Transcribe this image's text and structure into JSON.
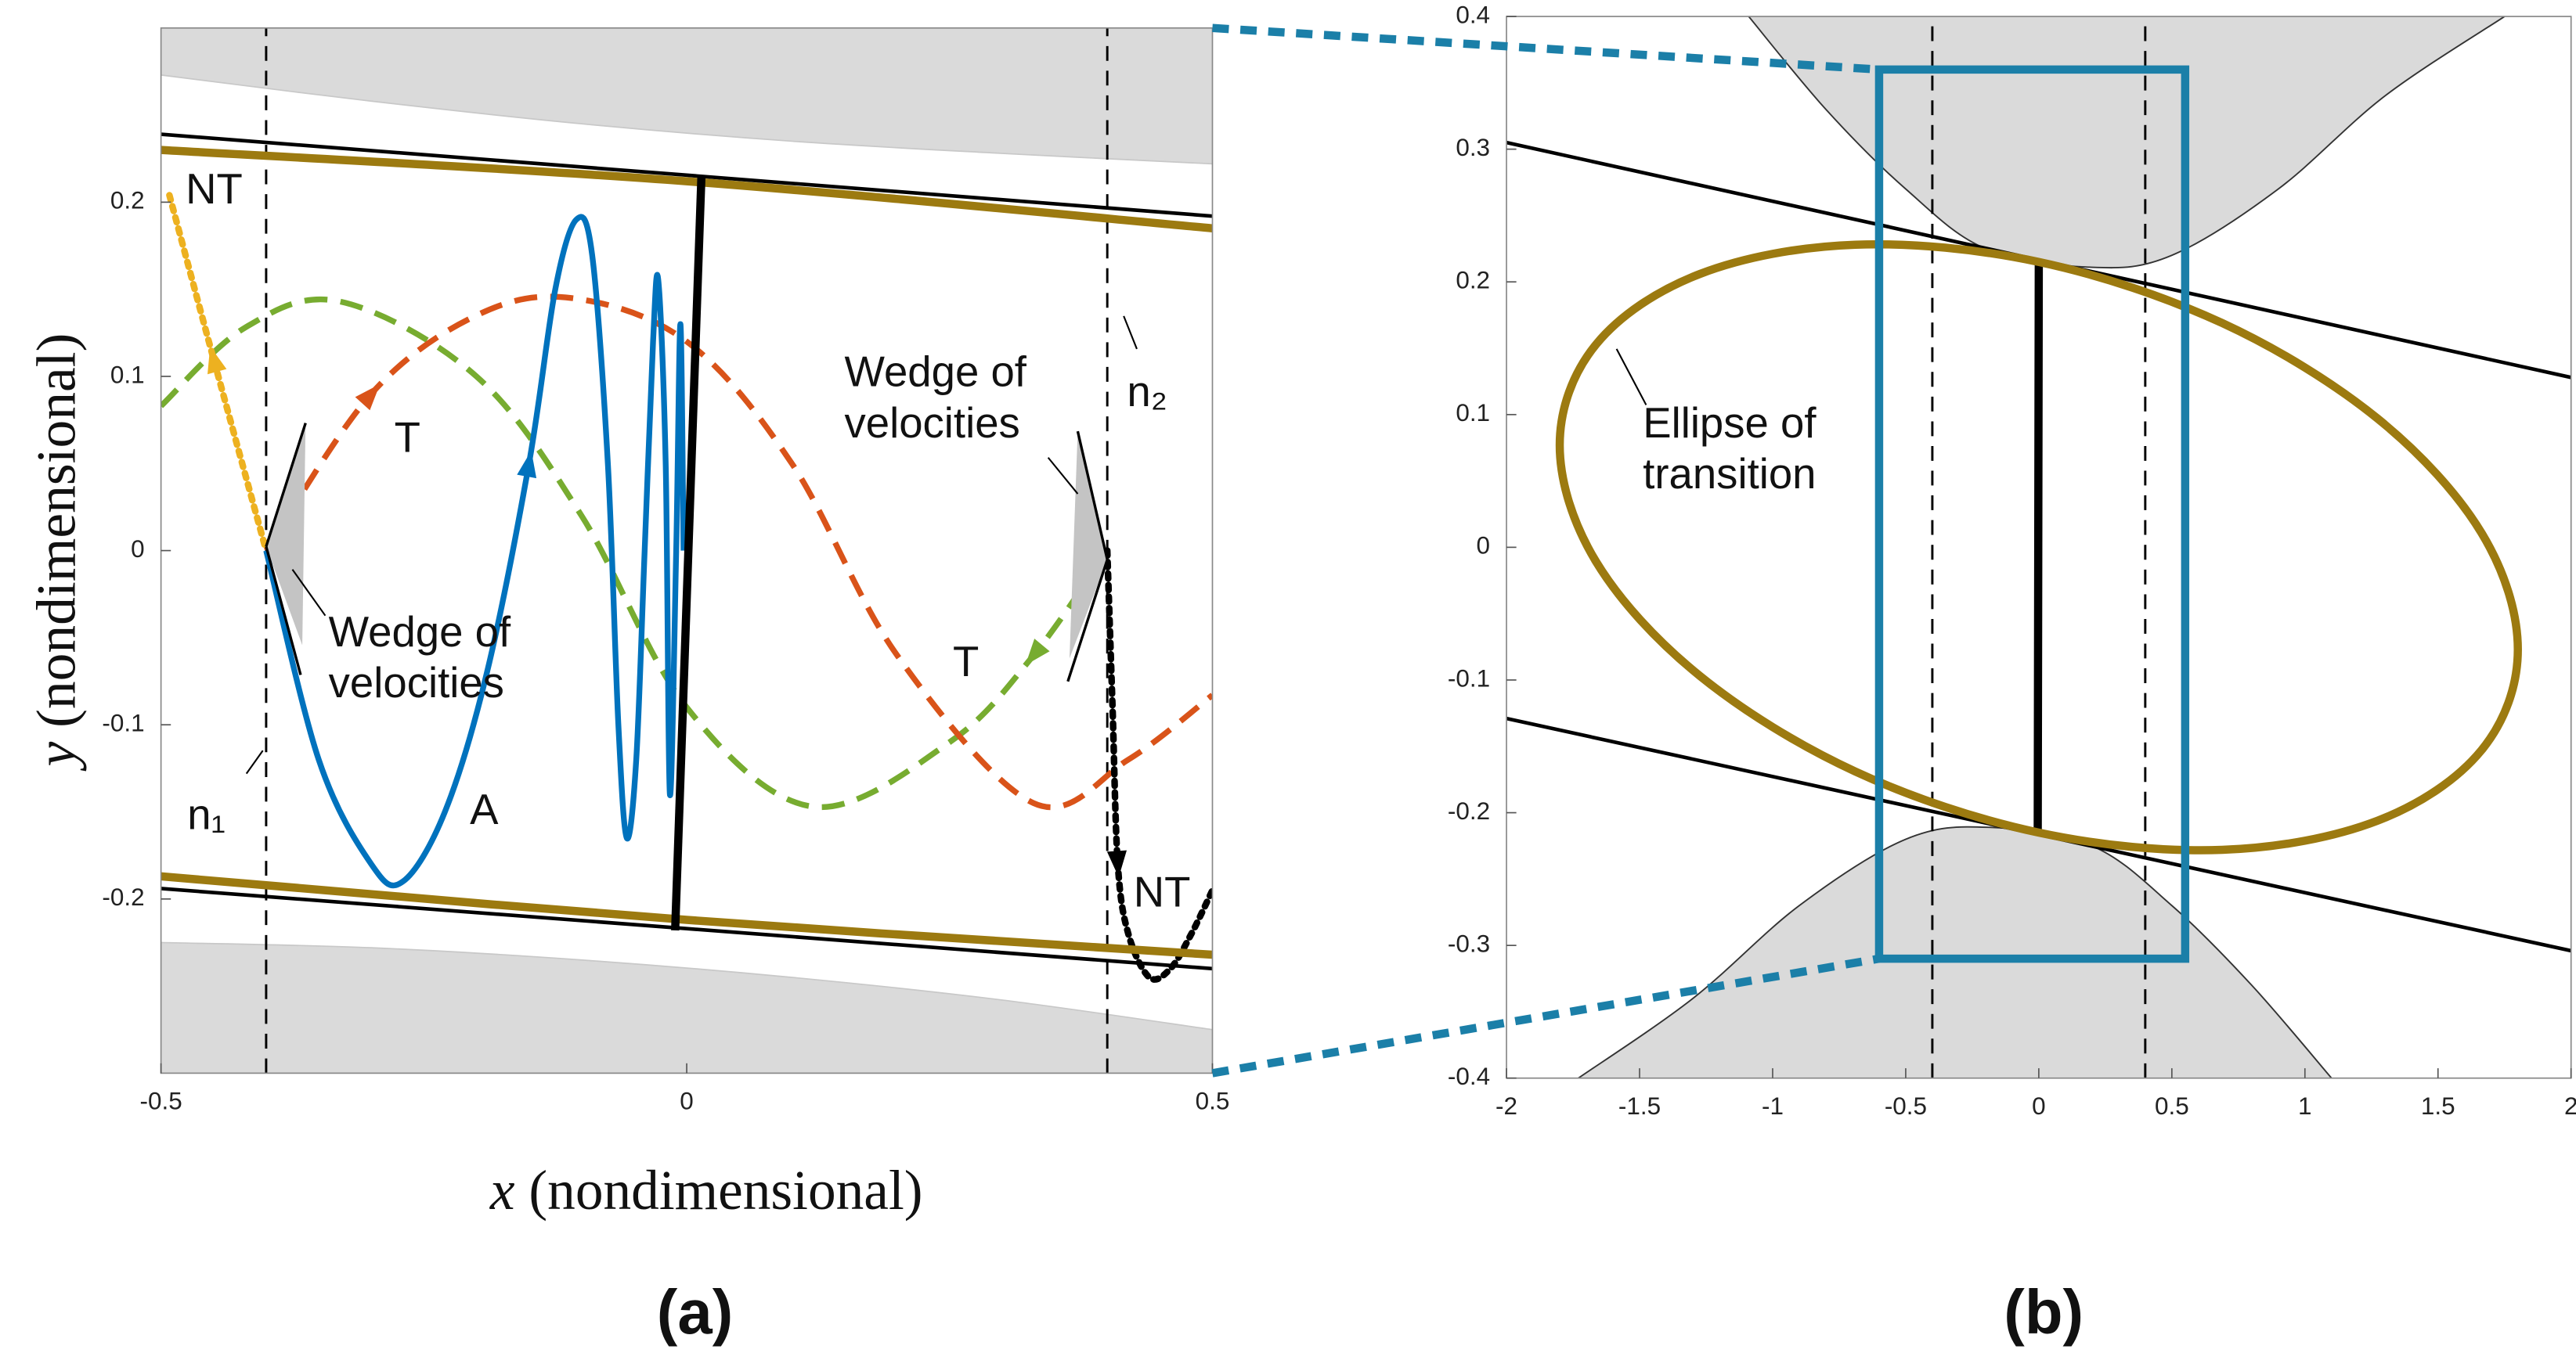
{
  "chart_data": [
    {
      "type": "line",
      "panel_label": "(a)",
      "x_label": {
        "var": "x",
        "unit": "(nondimensional)"
      },
      "y_label": {
        "var": "y",
        "unit": "(nondimensional)"
      },
      "xlim": [
        -0.5,
        0.5
      ],
      "ylim": [
        -0.3,
        0.3
      ],
      "xticks": [
        -0.5,
        0,
        0.5
      ],
      "yticks": [
        -0.2,
        -0.1,
        0,
        0.1,
        0.2
      ],
      "annotations": [
        [
          "NT"
        ],
        [
          "T"
        ],
        [
          "T"
        ],
        [
          "A"
        ],
        [
          "Wedge of",
          "velocities"
        ],
        [
          "Wedge of",
          "velocities"
        ],
        [
          "NT"
        ],
        [
          "n₁"
        ],
        [
          "n₂"
        ]
      ],
      "series": [
        {
          "color": "#c8c8c8",
          "fill": "#dadada",
          "fill_to": "top",
          "width": 0.8,
          "style": "solid",
          "x": [
            -0.5,
            -0.3,
            -0.1,
            0.1,
            0.3,
            0.5
          ],
          "values": [
            0.273,
            0.258,
            0.245,
            0.235,
            0.228,
            0.222
          ]
        },
        {
          "color": "#c8c8c8",
          "fill": "#dadada",
          "fill_to": "bottom",
          "width": 0.8,
          "style": "solid",
          "x": [
            -0.5,
            -0.3,
            -0.1,
            0.1,
            0.3,
            0.5
          ],
          "values": [
            -0.225,
            -0.228,
            -0.235,
            -0.245,
            -0.258,
            -0.275
          ]
        },
        {
          "color": "#000000",
          "width": 1.4,
          "style": "longdash",
          "x": [
            -0.4,
            -0.4
          ],
          "values": [
            -0.3,
            0.3
          ]
        },
        {
          "color": "#000000",
          "width": 1.4,
          "style": "longdash",
          "x": [
            0.4,
            0.4
          ],
          "values": [
            -0.3,
            0.3
          ]
        },
        {
          "color": "#000000",
          "width": 2.2,
          "style": "solid",
          "x": [
            -0.5,
            0.5
          ],
          "values": [
            0.239,
            0.192
          ]
        },
        {
          "color": "#000000",
          "width": 2.2,
          "style": "solid",
          "x": [
            -0.5,
            0.5
          ],
          "values": [
            -0.194,
            -0.24
          ]
        },
        {
          "color": "#77ac30",
          "width": 3.5,
          "style": "dash",
          "x": [
            -0.5,
            -0.42,
            -0.33,
            -0.2,
            -0.1,
            0,
            0.12,
            0.25,
            0.33,
            0.4
          ],
          "values": [
            0.083,
            0.128,
            0.143,
            0.1,
            0.02,
            -0.09,
            -0.147,
            -0.11,
            -0.06,
            0
          ]
        },
        {
          "color": "#d95319",
          "width": 3.5,
          "style": "dash",
          "x": [
            -0.4,
            -0.3,
            -0.2,
            -0.11,
            0,
            0.1,
            0.2,
            0.33,
            0.42,
            0.5
          ],
          "values": [
            0,
            0.09,
            0.135,
            0.145,
            0.12,
            0.05,
            -0.06,
            -0.145,
            -0.12,
            -0.083
          ]
        },
        {
          "color": "#edb120",
          "width": 4,
          "style": "dot",
          "x": [
            -0.492,
            -0.45,
            -0.4
          ],
          "values": [
            0.204,
            0.11,
            0
          ]
        },
        {
          "color": "#000000",
          "width": 4,
          "style": "dot",
          "x": [
            0.4,
            0.405,
            0.41,
            0.42,
            0.44,
            0.46,
            0.48,
            0.5
          ],
          "values": [
            0,
            -0.09,
            -0.18,
            -0.22,
            -0.245,
            -0.24,
            -0.22,
            -0.195
          ]
        },
        {
          "color": "#0072bd",
          "width": 3.5,
          "style": "solid",
          "x": [
            -0.4,
            -0.35,
            -0.3,
            -0.27,
            -0.23,
            -0.19,
            -0.15,
            -0.125,
            -0.105,
            -0.09,
            -0.075,
            -0.065,
            -0.057,
            -0.048,
            -0.04,
            -0.032,
            -0.027,
            -0.02,
            -0.016,
            -0.01,
            -0.006,
            -0.003
          ],
          "values": [
            0,
            -0.12,
            -0.18,
            -0.19,
            -0.15,
            -0.07,
            0.05,
            0.15,
            0.19,
            0.17,
            0.05,
            -0.1,
            -0.165,
            -0.12,
            0,
            0.12,
            0.155,
            0.05,
            -0.14,
            0,
            0.13,
            0
          ]
        },
        {
          "color": "#9c7a10",
          "width": 5,
          "style": "solid",
          "x": [
            -0.5,
            0,
            0.5
          ],
          "values": [
            0.23,
            0.212,
            0.185
          ]
        },
        {
          "color": "#9c7a10",
          "width": 5,
          "style": "solid",
          "x": [
            -0.5,
            0,
            0.5
          ],
          "values": [
            -0.187,
            -0.212,
            -0.232
          ]
        },
        {
          "color": "#000000",
          "width": 5,
          "style": "solid",
          "x": [
            0.014,
            -0.011
          ],
          "values": [
            0.215,
            -0.218
          ]
        }
      ]
    },
    {
      "type": "line",
      "panel_label": "(b)",
      "xlim": [
        -2,
        2
      ],
      "ylim": [
        -0.4,
        0.4
      ],
      "xticks": [
        -2,
        -1.5,
        -1,
        -0.5,
        0,
        0.5,
        1,
        1.5,
        2
      ],
      "yticks": [
        -0.4,
        -0.3,
        -0.2,
        -0.1,
        0,
        0.1,
        0.2,
        0.3,
        0.4
      ],
      "annotations": [
        [
          "Ellipse of",
          "transition"
        ]
      ],
      "series": [
        {
          "color": "#333333",
          "fill": "#dadada",
          "fill_to": "top",
          "width": 0.9,
          "style": "solid",
          "x": [
            -1.09,
            -0.8,
            -0.5,
            -0.2,
            0.2,
            0.5,
            0.9,
            1.3,
            1.75
          ],
          "values": [
            0.4,
            0.33,
            0.27,
            0.225,
            0.211,
            0.22,
            0.27,
            0.34,
            0.4
          ]
        },
        {
          "color": "#333333",
          "fill": "#dadada",
          "fill_to": "bottom",
          "width": 0.9,
          "style": "solid",
          "x": [
            -1.73,
            -1.3,
            -0.9,
            -0.5,
            -0.19,
            0.2,
            0.5,
            0.8,
            1.1
          ],
          "values": [
            -0.4,
            -0.34,
            -0.27,
            -0.22,
            -0.211,
            -0.225,
            -0.27,
            -0.33,
            -0.4
          ]
        },
        {
          "color": "#000000",
          "width": 1.4,
          "style": "longdash",
          "x": [
            -0.4,
            -0.4
          ],
          "values": [
            -0.4,
            0.4
          ]
        },
        {
          "color": "#000000",
          "width": 1.4,
          "style": "longdash",
          "x": [
            0.4,
            0.4
          ],
          "values": [
            -0.4,
            0.4
          ]
        },
        {
          "color": "#000000",
          "width": 2.2,
          "style": "solid",
          "x": [
            -2,
            2
          ],
          "values": [
            0.305,
            0.128
          ]
        },
        {
          "color": "#000000",
          "width": 2.2,
          "style": "solid",
          "x": [
            -2,
            2
          ],
          "values": [
            -0.129,
            -0.304
          ]
        },
        {
          "color": "#000000",
          "width": 5,
          "style": "solid",
          "x": [
            0,
            -0.004
          ],
          "values": [
            0.215,
            -0.216
          ]
        },
        {
          "color": "#9c7a10",
          "width": 5,
          "style": "solid",
          "closed": true,
          "x": [
            1.8,
            1.663,
            1.273,
            0.689,
            0,
            -0.689,
            -1.273,
            -1.663,
            -1.8,
            -1.663,
            -1.273,
            -0.689,
            0,
            0.689,
            1.273,
            1.663
          ],
          "values": [
            -0.077,
            0.011,
            0.097,
            0.169,
            0.215,
            0.228,
            0.206,
            0.153,
            0.077,
            -0.011,
            -0.097,
            -0.169,
            -0.215,
            -0.228,
            -0.206,
            -0.153
          ]
        }
      ],
      "zoom_box": {
        "color": "#1b7fa8",
        "x": [
          -0.6,
          0.55
        ],
        "values": [
          -0.31,
          0.36
        ]
      }
    }
  ]
}
